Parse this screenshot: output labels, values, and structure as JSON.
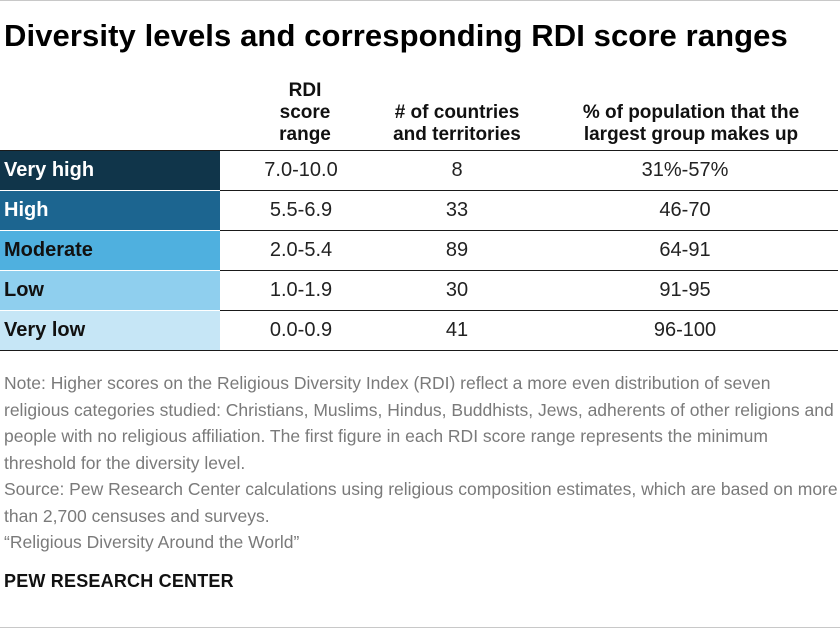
{
  "title": "Diversity levels and corresponding RDI score ranges",
  "columns": {
    "rdi": [
      "RDI",
      "score",
      "range"
    ],
    "countries": [
      "# of countries",
      "and territories"
    ],
    "population": [
      "% of population that the",
      "largest group makes up"
    ]
  },
  "rows": [
    {
      "level": "Very high",
      "range": "7.0-10.0",
      "countries": "8",
      "population": "31%-57%",
      "bg": "#10354a",
      "fg": "#ffffff"
    },
    {
      "level": "High",
      "range": "5.5-6.9",
      "countries": "33",
      "population": "46-70",
      "bg": "#1c6590",
      "fg": "#ffffff"
    },
    {
      "level": "Moderate",
      "range": "2.0-5.4",
      "countries": "89",
      "population": "64-91",
      "bg": "#4fb0df",
      "fg": "#111111"
    },
    {
      "level": "Low",
      "range": "1.0-1.9",
      "countries": "30",
      "population": "91-95",
      "bg": "#8fcfee",
      "fg": "#111111"
    },
    {
      "level": "Very low",
      "range": "0.0-0.9",
      "countries": "41",
      "population": "96-100",
      "bg": "#c6e6f6",
      "fg": "#111111"
    }
  ],
  "notes": {
    "note": "Note: Higher scores on the Religious Diversity Index (RDI) reflect a more even distribution of seven religious categories studied: Christians, Muslims, Hindus, Buddhists, Jews, adherents of other religions and people with no religious affiliation. The first figure in each RDI score range represents the minimum threshold for the diversity level.",
    "source": "Source: Pew Research Center calculations using religious composition estimates, which are based on more than 2,700 censuses and surveys.",
    "report": "“Religious Diversity Around the World”"
  },
  "brand": "PEW RESEARCH CENTER"
}
